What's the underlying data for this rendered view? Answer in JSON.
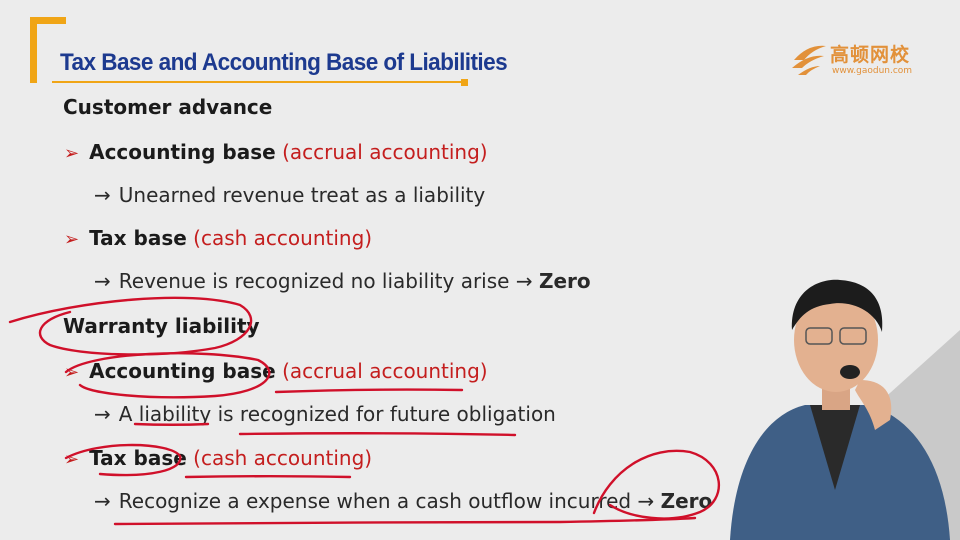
{
  "slide": {
    "title": "Tax Base and Accounting Base of Liabilities",
    "logo": {
      "cn": "高顿网校",
      "en": "www.gaodun.com"
    },
    "sections": [
      {
        "heading": "Customer advance",
        "items": [
          {
            "label": "Accounting base",
            "note": "(accrual accounting)",
            "detail": "Unearned revenue treat as a liability",
            "result": ""
          },
          {
            "label": "Tax base",
            "note": "(cash accounting)",
            "detail": "Revenue is recognized no liability arise",
            "result": "Zero"
          }
        ]
      },
      {
        "heading": "Warranty liability",
        "items": [
          {
            "label": "Accounting base",
            "note": "(accrual accounting)",
            "detail": "A liability is recognized for future obligation",
            "result": ""
          },
          {
            "label": "Tax base",
            "note": "(cash accounting)",
            "detail": "Recognize a expense when a cash outflow incurred",
            "result": "Zero"
          }
        ]
      }
    ]
  },
  "colors": {
    "title": "#1d3a8f",
    "accent": "#f0a516",
    "red": "#c41e1e",
    "ink": "#d0102a",
    "logo": "#e2913a"
  }
}
